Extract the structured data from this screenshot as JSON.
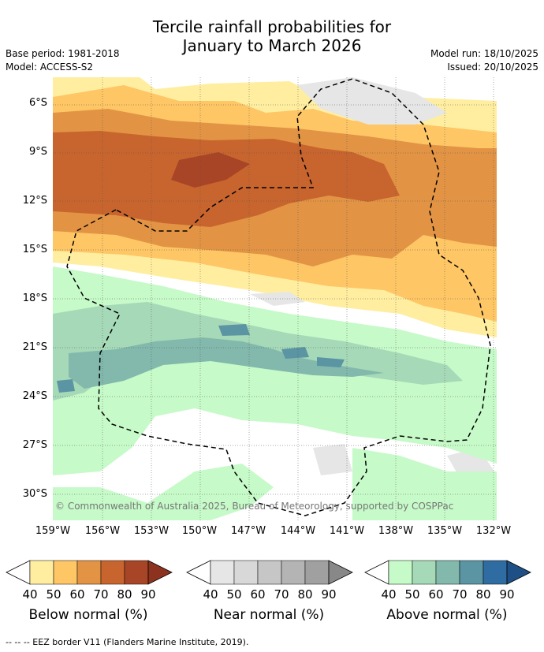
{
  "header": {
    "title_line1": "Tercile rainfall probabilities for",
    "title_line2": "January to March 2026",
    "base_period": "Base period: 1981-2018",
    "model": "Model: ACCESS-S2",
    "model_run": "Model run: 18/10/2025",
    "issued": "Issued: 20/10/2025"
  },
  "map": {
    "lat_labels": [
      "6°S",
      "9°S",
      "12°S",
      "15°S",
      "18°S",
      "21°S",
      "24°S",
      "27°S",
      "30°S"
    ],
    "lon_labels": [
      "159°W",
      "156°W",
      "153°W",
      "150°W",
      "147°W",
      "144°W",
      "141°W",
      "138°W",
      "135°W",
      "132°W"
    ],
    "copyright": "© Commonwealth of Australia 2025, Bureau of Meteorology, supported by COSPPac"
  },
  "legends": [
    {
      "title": "Below normal (%)",
      "ticks": [
        "40",
        "50",
        "60",
        "70",
        "80",
        "90"
      ],
      "colors": [
        "#ffeea0",
        "#fec665",
        "#e29444",
        "#c8652e",
        "#a84526",
        "#8e3220"
      ]
    },
    {
      "title": "Near normal (%)",
      "ticks": [
        "40",
        "50",
        "60",
        "70",
        "80",
        "90"
      ],
      "colors": [
        "#e6e6e6",
        "#d8d8d8",
        "#c6c6c6",
        "#b4b4b4",
        "#a0a0a0",
        "#888888"
      ]
    },
    {
      "title": "Above normal (%)",
      "ticks": [
        "40",
        "50",
        "60",
        "70",
        "80",
        "90"
      ],
      "colors": [
        "#c6fac8",
        "#a6d9b7",
        "#82b9ac",
        "#5b94a3",
        "#2f6ca1",
        "#1e4f85"
      ]
    }
  ],
  "footer": {
    "eez_note": "--  --  -- EEZ border V11 (Flanders Marine Institute, 2019)."
  }
}
